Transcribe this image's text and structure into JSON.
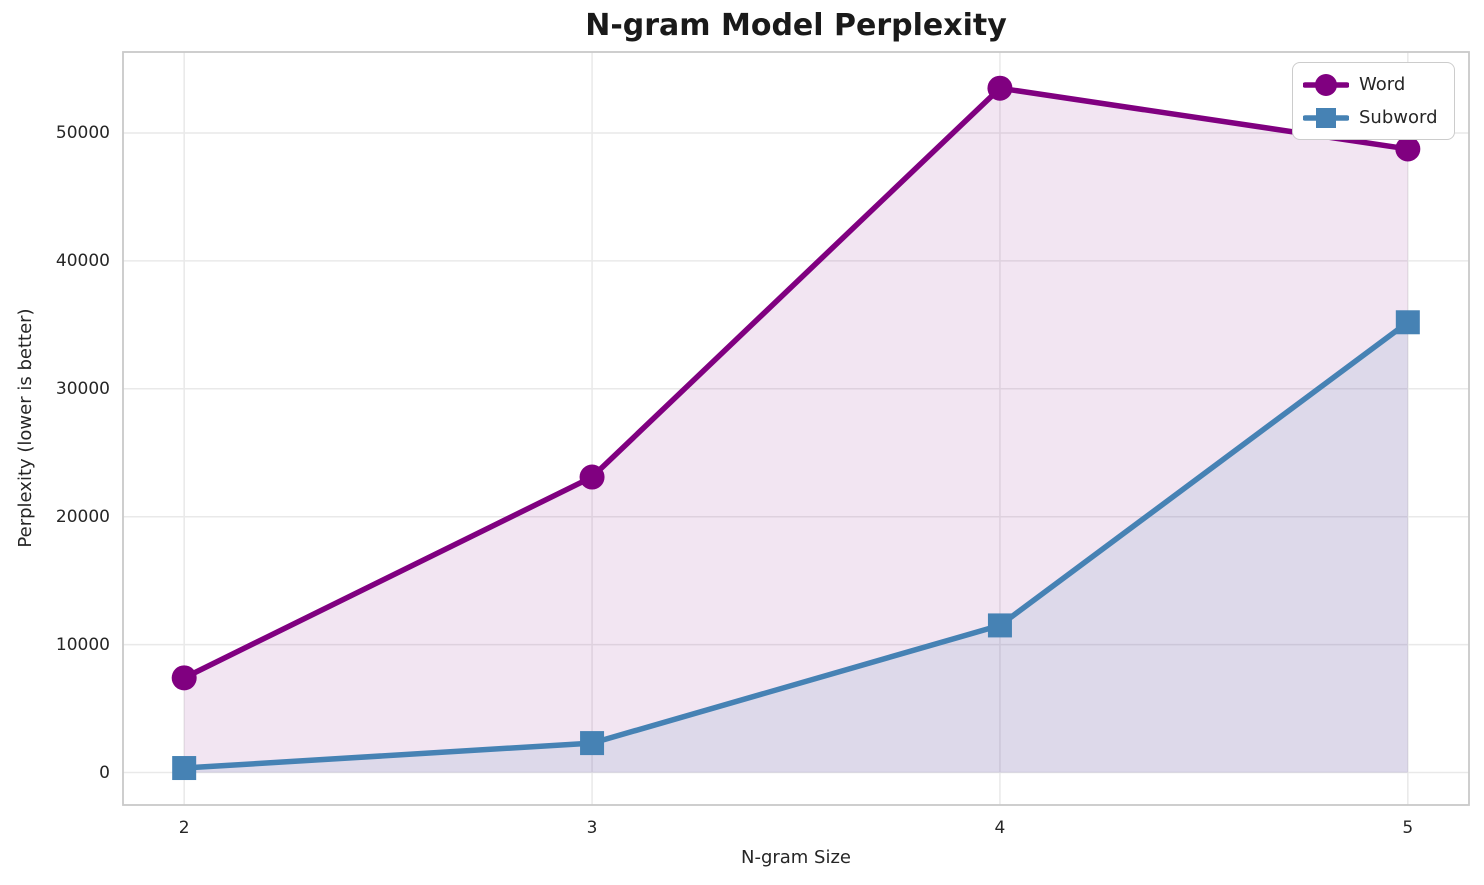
{
  "chart_data": {
    "type": "line",
    "title": "N-gram Model Perplexity",
    "xlabel": "N-gram Size",
    "ylabel": "Perplexity (lower is better)",
    "x": [
      2,
      3,
      4,
      5
    ],
    "series": [
      {
        "name": "Word",
        "color": "#800080",
        "marker": "circle",
        "fill_alpha": 0.1,
        "values": [
          7400,
          23100,
          53500,
          48750
        ]
      },
      {
        "name": "Subword",
        "color": "#4682b4",
        "marker": "square",
        "fill_alpha": 0.12,
        "values": [
          350,
          2300,
          11500,
          35200
        ]
      }
    ],
    "xticks": [
      2,
      3,
      4,
      5
    ],
    "yticks": [
      0,
      10000,
      20000,
      30000,
      40000,
      50000
    ],
    "xlim": [
      1.85,
      5.15
    ],
    "ylim": [
      -2540,
      56330
    ],
    "grid": true,
    "fill_to_zero": true,
    "legend": {
      "position": "upper right",
      "entries": [
        "Word",
        "Subword"
      ]
    }
  },
  "colors": {
    "background": "#ffffff",
    "grid": "#e9e9e9",
    "spine": "#c9c9c9",
    "text": "#262626",
    "word": "#800080",
    "subword": "#4682b4"
  }
}
